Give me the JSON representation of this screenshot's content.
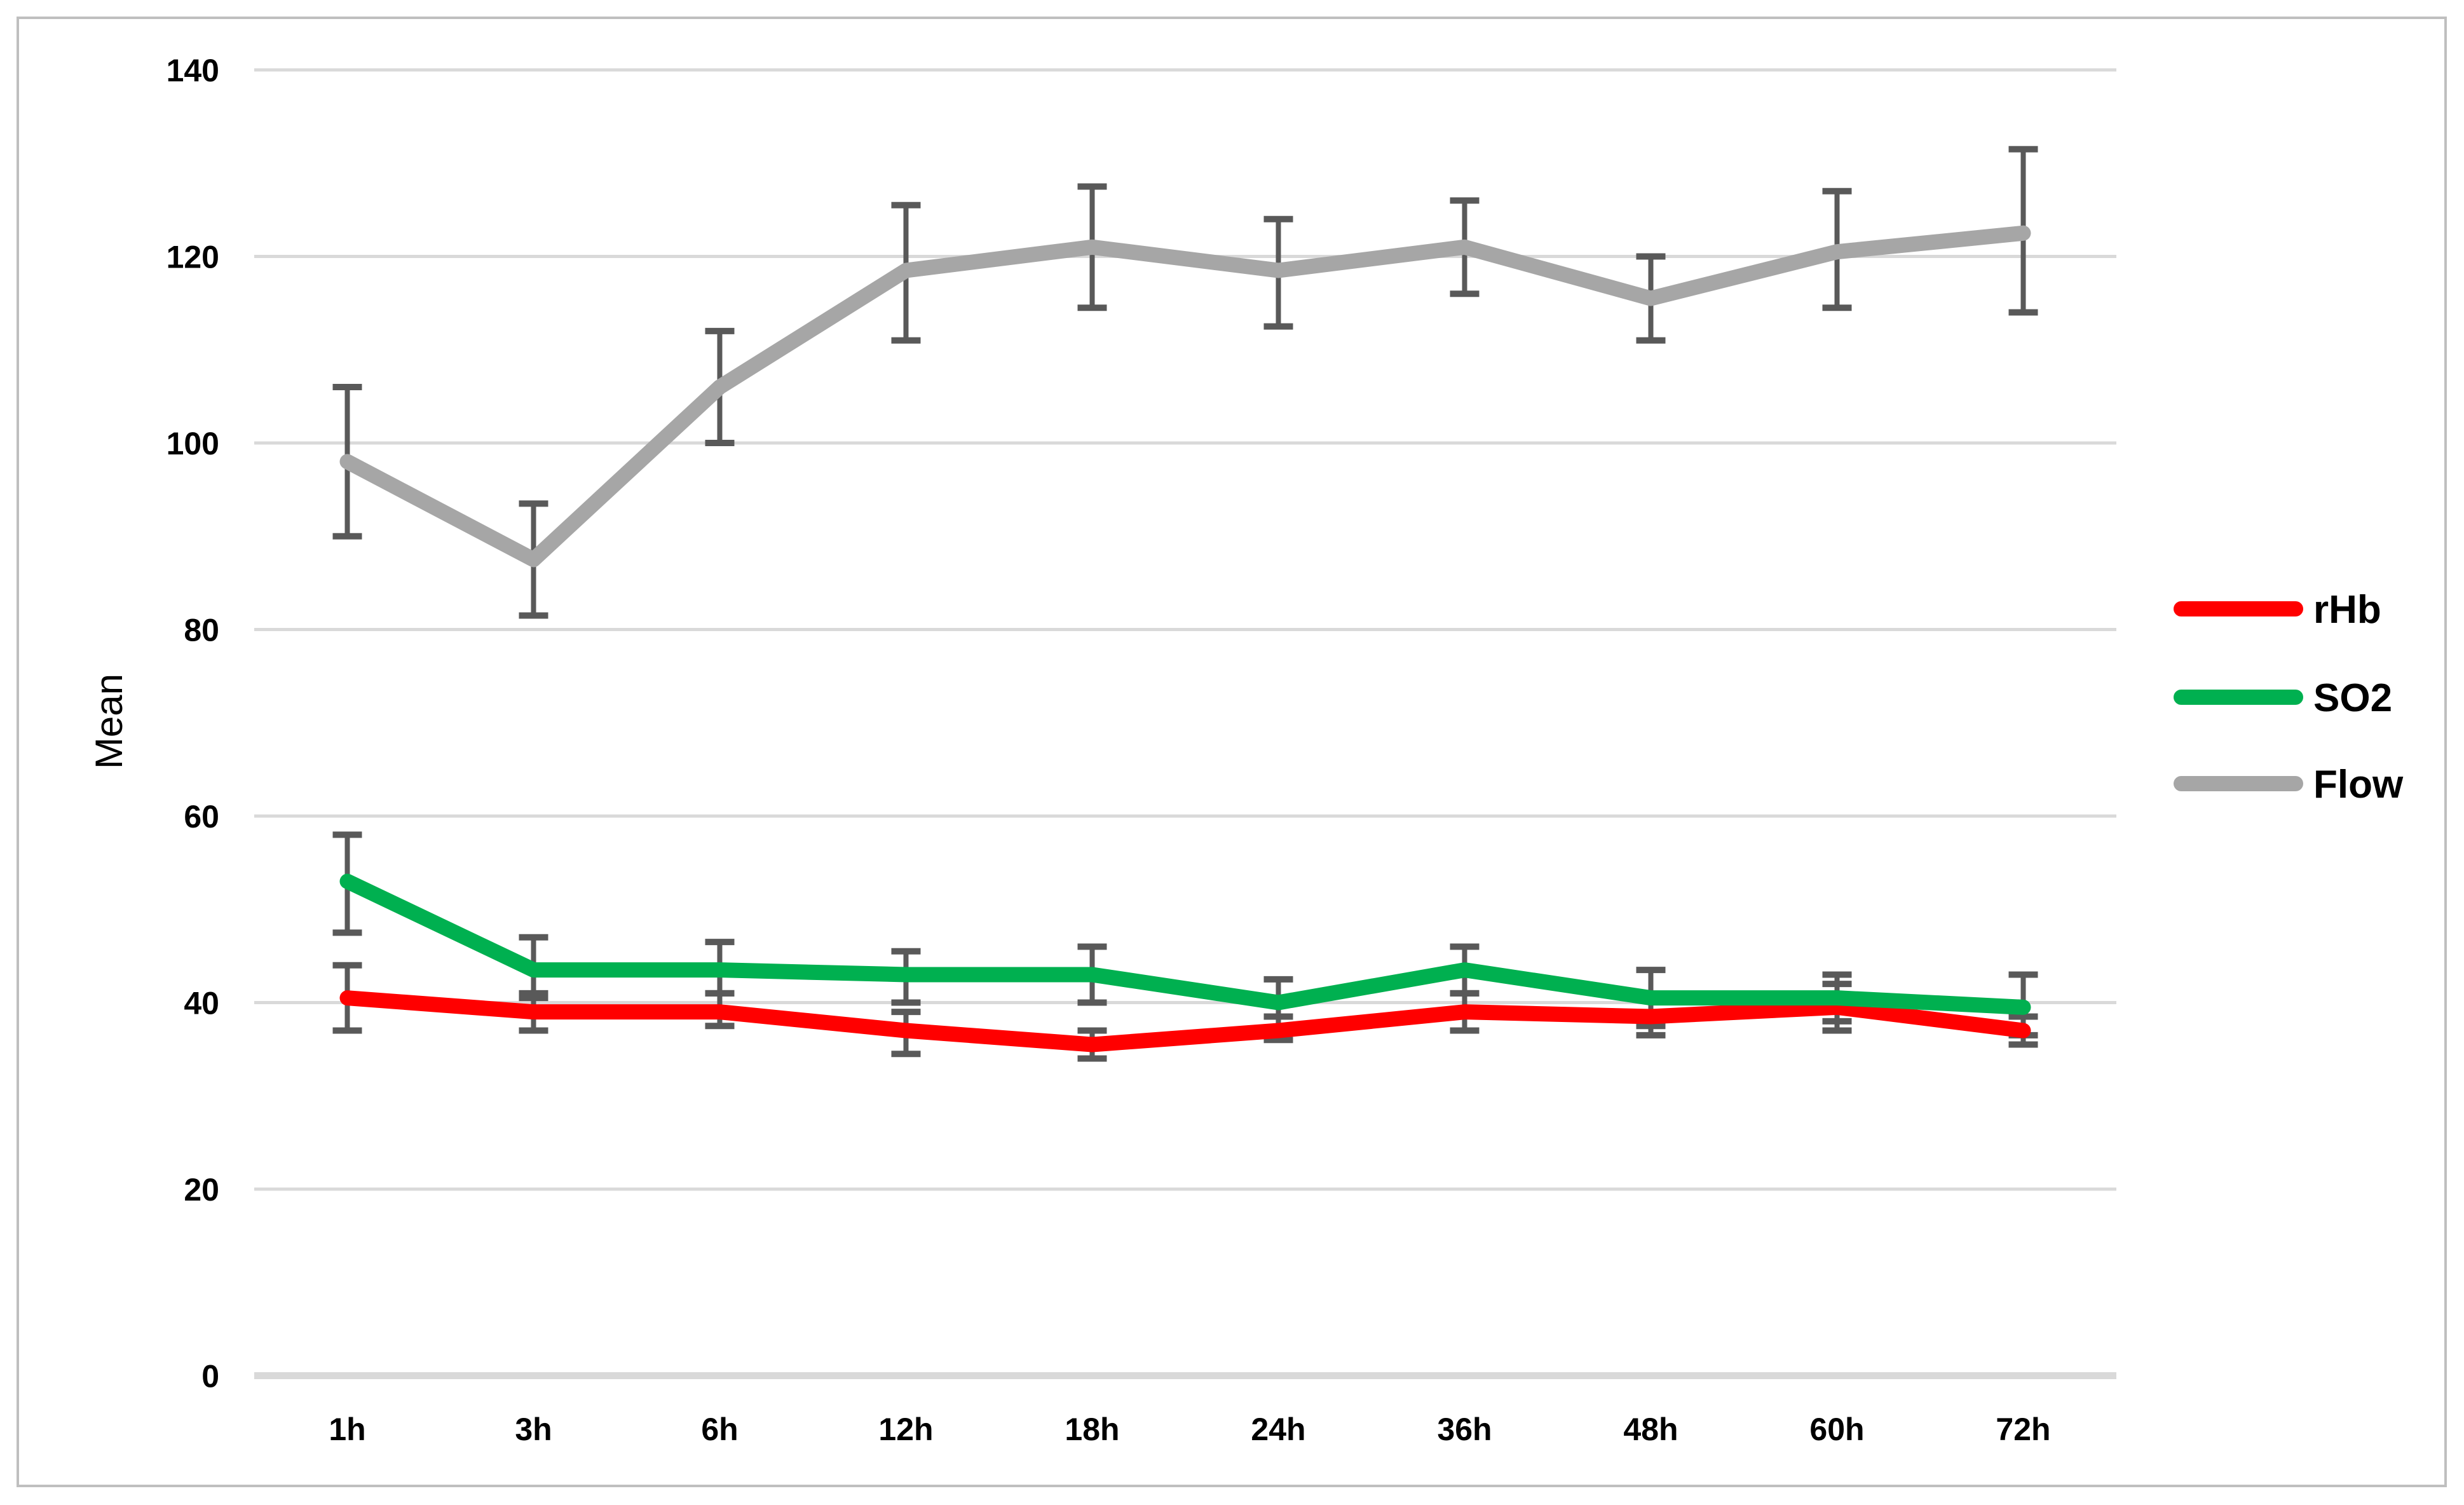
{
  "figure": {
    "background_color": "#FFFFFF",
    "border_color": "#BFBFBF"
  },
  "axes": {
    "y_title": "Mean",
    "text_color": "#000000"
  },
  "legend": {
    "items": [
      {
        "label": "rHb",
        "color": "#FF0000"
      },
      {
        "label": "SO2",
        "color": "#00B050"
      },
      {
        "label": "Flow",
        "color": "#A6A6A6"
      }
    ]
  },
  "chart_data": {
    "type": "line",
    "title": "",
    "xlabel": "",
    "ylabel": "Mean",
    "categories": [
      "1h",
      "3h",
      "6h",
      "12h",
      "18h",
      "24h",
      "36h",
      "48h",
      "60h",
      "72h"
    ],
    "y_ticks": [
      0,
      20,
      40,
      60,
      80,
      100,
      120,
      140
    ],
    "ylim": [
      0,
      145
    ],
    "grid": true,
    "legend_position": "right",
    "gridline_color": "#D9D9D9",
    "error_bar_color": "#595959",
    "series": [
      {
        "name": "rHb",
        "color": "#FF0000",
        "values": [
          40.5,
          39,
          39,
          37,
          35.5,
          37,
          39,
          38.5,
          39.5,
          37
        ],
        "error_upper": [
          44,
          41,
          41,
          39,
          37,
          38.5,
          41,
          40.5,
          42,
          38.5
        ],
        "error_lower": [
          37,
          37,
          37.5,
          34.5,
          34,
          36,
          37,
          36.5,
          37,
          35.5
        ]
      },
      {
        "name": "SO2",
        "color": "#00B050",
        "values": [
          53,
          43.5,
          43.5,
          43,
          43,
          40,
          43.5,
          40.5,
          40.5,
          39.5
        ],
        "error_upper": [
          58,
          47,
          46.5,
          45.5,
          46,
          42.5,
          46,
          43.5,
          43,
          43
        ],
        "error_lower": [
          47.5,
          40.5,
          41,
          40,
          40,
          38.5,
          41,
          37.5,
          38,
          36.5
        ]
      },
      {
        "name": "Flow",
        "color": "#A6A6A6",
        "values": [
          98,
          87.5,
          106,
          118.5,
          121,
          118.5,
          121,
          115.5,
          120.5,
          122.5
        ],
        "error_upper": [
          106,
          93.5,
          112,
          125.5,
          127.5,
          124,
          126,
          120,
          127,
          131.5
        ],
        "error_lower": [
          90,
          81.5,
          100,
          111,
          114.5,
          112.5,
          116,
          111,
          114.5,
          114
        ]
      }
    ]
  }
}
